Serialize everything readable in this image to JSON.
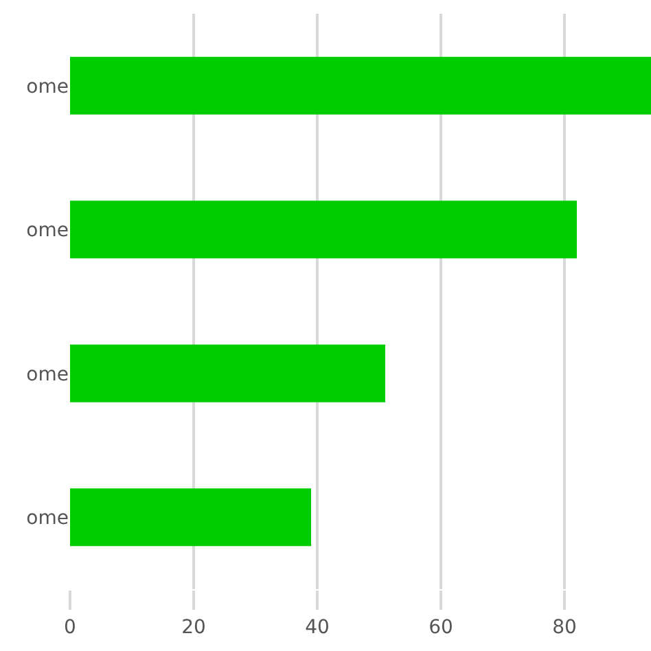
{
  "chart_data": {
    "type": "bar",
    "orientation": "horizontal",
    "categories": [
      "ome",
      "ome",
      "ome",
      "ome"
    ],
    "values": [
      94,
      82,
      51,
      39
    ],
    "color": "#00cc00",
    "xlim": [
      0,
      94
    ],
    "xticks": [
      0,
      20,
      40,
      60,
      80
    ],
    "grid": "x",
    "legend": false
  }
}
